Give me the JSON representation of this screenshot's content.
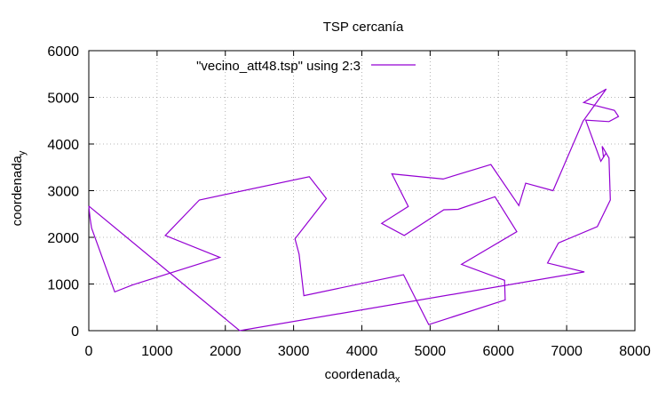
{
  "chart_data": {
    "type": "line",
    "title": "TSP cercanía",
    "xlabel": "coordenada",
    "xlabel_sub": "x",
    "ylabel": "coordenada",
    "ylabel_sub": "y",
    "xlim": [
      0,
      8000
    ],
    "ylim": [
      0,
      6000
    ],
    "xticks": [
      0,
      1000,
      2000,
      3000,
      4000,
      5000,
      6000,
      7000,
      8000
    ],
    "yticks": [
      0,
      1000,
      2000,
      3000,
      4000,
      5000,
      6000
    ],
    "grid": true,
    "legend_position": "top-left",
    "series": [
      {
        "name": "\"vecino_att48.tsp\" using 2:3",
        "color": "#9400d3",
        "x": [
          0,
          20,
          40,
          380,
          640,
          1920,
          1120,
          1620,
          3230,
          3480,
          3020,
          3080,
          3150,
          4610,
          4980,
          6100,
          6090,
          5460,
          6270,
          5950,
          5410,
          5200,
          4620,
          4290,
          4680,
          4440,
          5190,
          5890,
          6300,
          6400,
          6800,
          7240,
          7580,
          7250,
          7700,
          7760,
          7620,
          7280,
          7500,
          7580,
          7540,
          7520,
          7620,
          7640,
          7450,
          6880,
          6720,
          7260,
          2210,
          0
        ],
        "y": [
          2670,
          2400,
          2200,
          830,
          980,
          1570,
          2040,
          2800,
          3300,
          2830,
          1970,
          1640,
          750,
          1200,
          130,
          660,
          1080,
          1420,
          2120,
          2870,
          2600,
          2590,
          2040,
          2300,
          2660,
          3360,
          3250,
          3560,
          2680,
          3160,
          3000,
          4490,
          5180,
          4890,
          4720,
          4590,
          4480,
          4510,
          3630,
          3810,
          3720,
          3950,
          3700,
          2800,
          2230,
          1880,
          1450,
          1260,
          0,
          2670
        ]
      }
    ]
  }
}
